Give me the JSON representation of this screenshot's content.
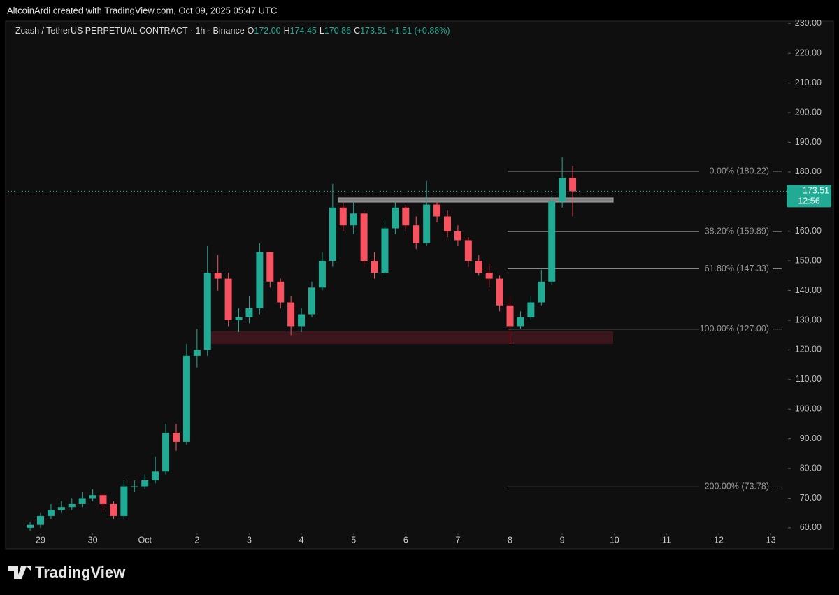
{
  "header": "AltcoinArdi created with TradingView.com, Oct 09, 2025 05:47 UTC",
  "footer": "TradingView",
  "chart_data": {
    "type": "candlestick",
    "legend": {
      "symbol": "Zcash / TetherUS PERPETUAL CONTRACT · 1h · Binance",
      "ohlc": [
        {
          "label": "O",
          "value": "172.00"
        },
        {
          "label": "H",
          "value": "174.45"
        },
        {
          "label": "L",
          "value": "170.86"
        },
        {
          "label": "C",
          "value": "173.51"
        }
      ],
      "change": "+1.51 (+0.88%)"
    },
    "x": [
      -0.2,
      0,
      0.2,
      0.4,
      0.6,
      0.8,
      1,
      1.2,
      1.4,
      1.6,
      1.8,
      2,
      2.2,
      2.4,
      2.6,
      2.8,
      3,
      3.2,
      3.4,
      3.6,
      3.8,
      4,
      4.2,
      4.4,
      4.6,
      4.8,
      5,
      5.2,
      5.4,
      5.6,
      5.8,
      6,
      6.2,
      6.4,
      6.6,
      6.8,
      7,
      7.2,
      7.4,
      7.6,
      7.8,
      8,
      8.2,
      8.4,
      8.6,
      8.8,
      9,
      9.2,
      9.4,
      9.6,
      9.8,
      10,
      10.2
    ],
    "open": [
      60,
      61,
      64,
      66,
      67,
      68,
      70,
      71,
      68,
      64,
      74,
      74,
      76,
      79,
      92,
      89,
      118,
      120,
      146,
      144,
      130,
      131,
      134,
      153,
      143,
      136,
      128,
      132,
      141,
      150,
      168,
      162,
      166,
      150,
      146,
      161,
      168,
      162,
      156,
      169,
      165,
      160,
      157,
      150,
      146,
      144,
      135,
      128,
      131,
      136,
      143,
      170,
      178
    ],
    "high": [
      62,
      65,
      68,
      69,
      70,
      72,
      73,
      72,
      69,
      76,
      76,
      78,
      84,
      95,
      95,
      122,
      127,
      155,
      152,
      146,
      134,
      138,
      156,
      153,
      144,
      138,
      134,
      143,
      153,
      176,
      170,
      170,
      167,
      153,
      164,
      170,
      169,
      165,
      177,
      170,
      167,
      162,
      158,
      152,
      149,
      145,
      138,
      133,
      138,
      147,
      172,
      185,
      182
    ],
    "low": [
      59,
      60,
      63,
      65,
      66,
      67,
      69,
      66,
      63,
      63,
      72,
      73,
      75,
      78,
      86,
      88,
      114,
      118,
      140,
      128,
      126,
      129,
      132,
      141,
      134,
      125,
      126,
      131,
      140,
      148,
      160,
      159,
      148,
      144,
      145,
      159,
      160,
      154,
      155,
      163,
      158,
      155,
      148,
      145,
      141,
      133,
      122,
      127,
      130,
      135,
      142,
      168,
      165
    ],
    "close": [
      61,
      64,
      66,
      67,
      68,
      70,
      71,
      68,
      64,
      74,
      74,
      76,
      79,
      92,
      89,
      118,
      120,
      146,
      144,
      130,
      131,
      134,
      153,
      143,
      136,
      128,
      132,
      141,
      150,
      168,
      162,
      166,
      150,
      146,
      161,
      168,
      162,
      156,
      169,
      165,
      160,
      157,
      150,
      146,
      144,
      135,
      128,
      131,
      136,
      143,
      170,
      178,
      173.51
    ],
    "up_color": "#22ab94",
    "down_color": "#f7525f",
    "last_price": {
      "value": 173.51,
      "label": "173.51",
      "countdown": "12:56"
    },
    "fib_levels": [
      {
        "value": 180.22,
        "label": "0.00% (180.22)"
      },
      {
        "value": 159.89,
        "label": "38.20% (159.89)"
      },
      {
        "value": 147.33,
        "label": "61.80% (147.33)"
      },
      {
        "value": 127.0,
        "label": "100.00% (127.00)"
      },
      {
        "value": 73.78,
        "label": "200.00% (73.78)"
      }
    ],
    "xlim": [
      -0.67,
      14.3
    ],
    "ylim": [
      52.9,
      230.9
    ],
    "xticks": [
      {
        "value": 0,
        "label": "29"
      },
      {
        "value": 1,
        "label": "30"
      },
      {
        "value": 2,
        "label": "Oct"
      },
      {
        "value": 3,
        "label": "2"
      },
      {
        "value": 4,
        "label": "3"
      },
      {
        "value": 5,
        "label": "4"
      },
      {
        "value": 6,
        "label": "5"
      },
      {
        "value": 7,
        "label": "6"
      },
      {
        "value": 8,
        "label": "7"
      },
      {
        "value": 9,
        "label": "8"
      },
      {
        "value": 10,
        "label": "9"
      },
      {
        "value": 11,
        "label": "10"
      },
      {
        "value": 12,
        "label": "11"
      },
      {
        "value": 13,
        "label": "12"
      },
      {
        "value": 14,
        "label": "13"
      }
    ],
    "yticks": [
      {
        "value": 60,
        "label": "60.00"
      },
      {
        "value": 70,
        "label": "70.00"
      },
      {
        "value": 80,
        "label": "80.00"
      },
      {
        "value": 90,
        "label": "90.00"
      },
      {
        "value": 100,
        "label": "100.00"
      },
      {
        "value": 110,
        "label": "110.00"
      },
      {
        "value": 120,
        "label": "120.00"
      },
      {
        "value": 130,
        "label": "130.00"
      },
      {
        "value": 140,
        "label": "140.00"
      },
      {
        "value": 150,
        "label": "150.00"
      },
      {
        "value": 160,
        "label": "160.00"
      },
      {
        "value": 170,
        "label": "170.00"
      },
      {
        "value": 180,
        "label": "180.00"
      },
      {
        "value": 190,
        "label": "190.00"
      },
      {
        "value": 200,
        "label": "200.00"
      },
      {
        "value": 210,
        "label": "210.00"
      },
      {
        "value": 220,
        "label": "220.00"
      },
      {
        "value": 230,
        "label": "230.00"
      }
    ]
  }
}
